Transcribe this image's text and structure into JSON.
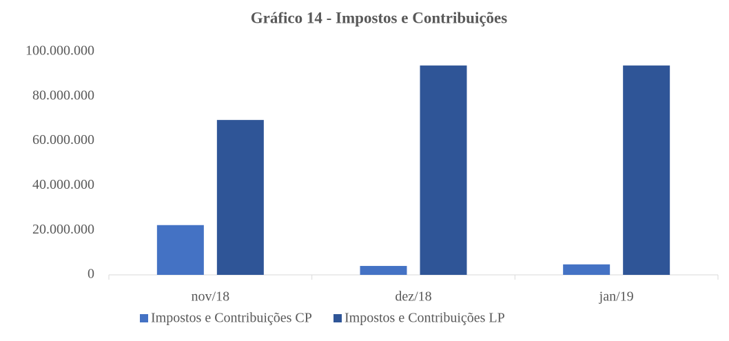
{
  "chart_data": {
    "type": "bar",
    "title": "Gráfico 14 - Impostos e Contribuições",
    "categories": [
      "nov/18",
      "dez/18",
      "jan/19"
    ],
    "series": [
      {
        "name": "Impostos e Contribuições CP",
        "color": "#4472c4",
        "values": [
          22300000,
          4000000,
          4700000
        ]
      },
      {
        "name": "Impostos e Contribuições LP",
        "color": "#2f5597",
        "values": [
          69400000,
          93800000,
          93800000
        ]
      }
    ],
    "ylim": [
      0,
      100000000
    ],
    "yticks": [
      0,
      {
        "value": 20000000,
        "label": "20.000.000"
      },
      {
        "value": 40000000,
        "label": "40.000.000"
      },
      {
        "value": 60000000,
        "label": "60.000.000"
      },
      {
        "value": 80000000,
        "label": "80.000.000"
      },
      {
        "value": 100000000,
        "label": "100.000.000"
      }
    ],
    "grid": false,
    "legend": "bottom"
  }
}
